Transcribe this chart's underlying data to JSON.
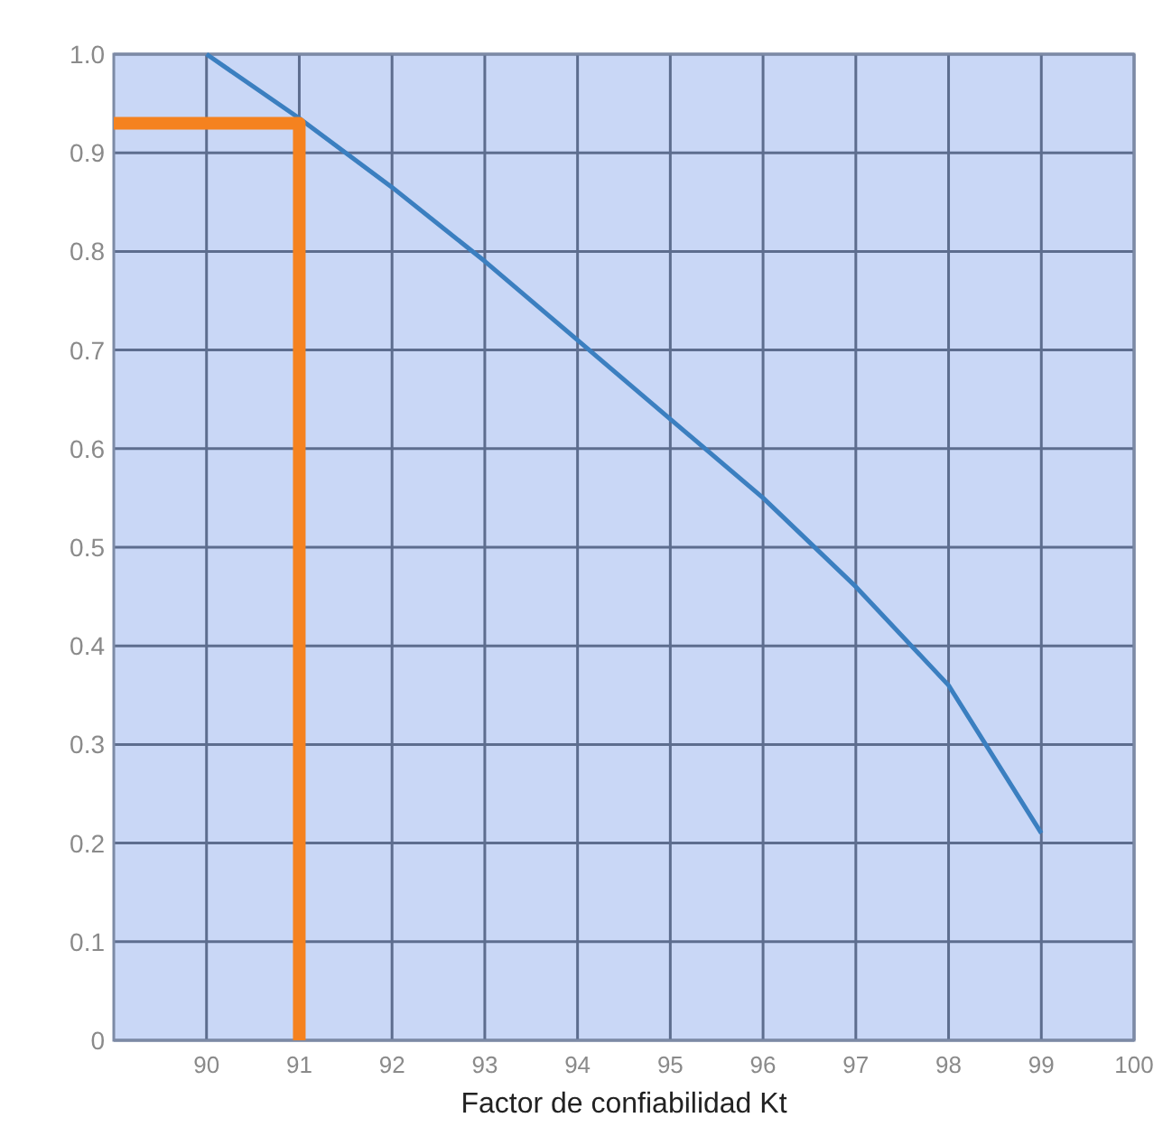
{
  "chart_data": {
    "type": "line",
    "xlabel": "Factor de confiabilidad Kt",
    "xlim": [
      89,
      100
    ],
    "xticks": [
      90,
      91,
      92,
      93,
      94,
      95,
      96,
      97,
      98,
      99,
      100
    ],
    "ylim": [
      0,
      1
    ],
    "yticks": [
      {
        "value": 0,
        "label": "0"
      },
      0.1,
      0.2,
      0.3,
      0.4,
      0.5,
      0.6,
      0.7,
      0.8,
      0.9,
      {
        "value": 1,
        "label": "1.0"
      }
    ],
    "grid": true,
    "marker": "none",
    "line_style": "solid",
    "series": [
      {
        "color": "#3b7fc0",
        "x": [
          90,
          91,
          92,
          93,
          94,
          95,
          96,
          97,
          98,
          99
        ],
        "values": [
          1.0,
          0.935,
          0.865,
          0.79,
          0.71,
          0.63,
          0.55,
          0.46,
          0.36,
          0.21
        ]
      },
      {
        "color": "#f5821f",
        "x": [
          89,
          91,
          91
        ],
        "values": [
          0.93,
          0.93,
          0
        ]
      }
    ]
  }
}
